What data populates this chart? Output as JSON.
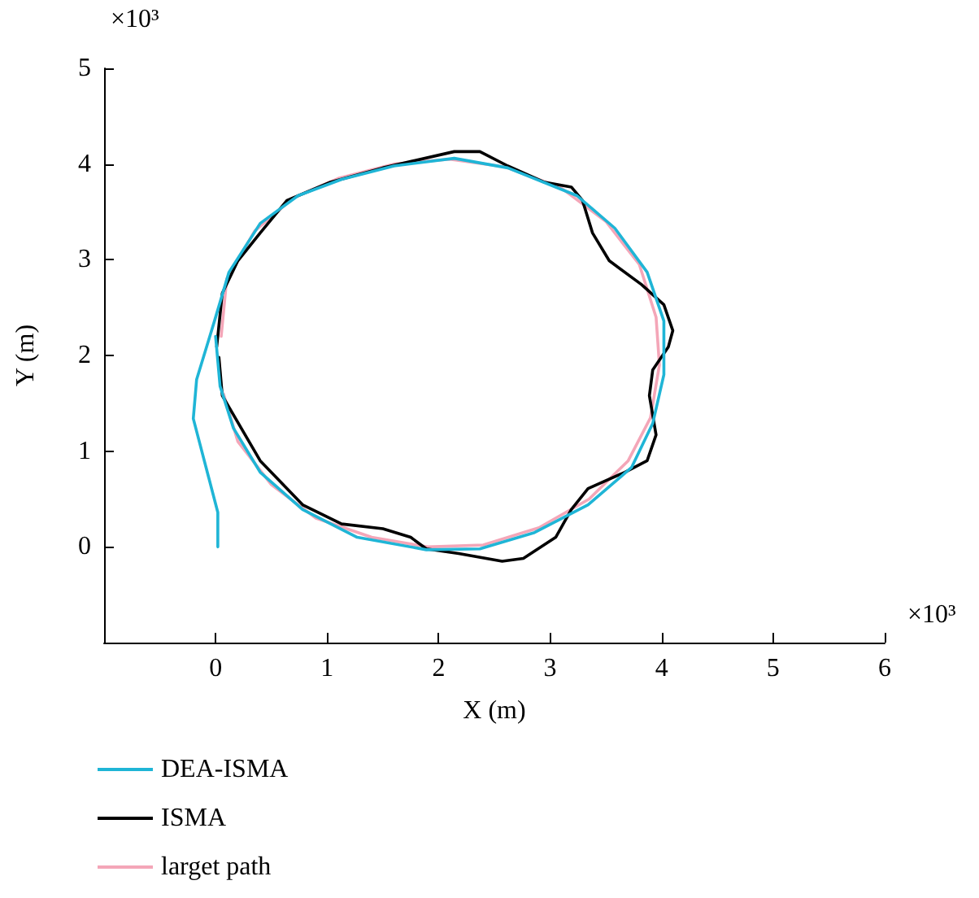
{
  "chart_data": {
    "type": "line",
    "xlabel": "X (m)",
    "ylabel": "Y (m)",
    "annotations": [
      "×10³",
      "×10³"
    ],
    "xlim": [
      -1,
      6
    ],
    "ylim": [
      -1,
      5
    ],
    "xticks": [
      0,
      1,
      2,
      3,
      4,
      5,
      6
    ],
    "yticks": [
      0,
      1,
      2,
      3,
      4,
      5
    ],
    "grid": false,
    "legend": "bottom",
    "marker": "none",
    "series": [
      {
        "name": "DEA-ISMA",
        "color": "#1fb5d6",
        "line_style": "solid",
        "x": [
          0.02,
          0.02,
          -0.2,
          -0.17,
          -0.01,
          0.12,
          0.4,
          0.74,
          1.13,
          1.6,
          2.14,
          2.62,
          3.24,
          3.58,
          3.87,
          4.02,
          4.02,
          3.92,
          3.73,
          3.34,
          2.86,
          2.37,
          1.89,
          1.27,
          0.78,
          0.4,
          0.16,
          0.04,
          0.0
        ],
        "values": [
          0,
          0.36,
          1.34,
          1.75,
          2.36,
          2.87,
          3.38,
          3.67,
          3.84,
          3.98,
          4.06,
          3.96,
          3.67,
          3.33,
          2.87,
          2.36,
          1.8,
          1.29,
          0.83,
          0.44,
          0.15,
          -0.02,
          -0.03,
          0.1,
          0.39,
          0.78,
          1.24,
          1.68,
          2.2
        ]
      },
      {
        "name": "ISMA",
        "color": "#000000",
        "x": [
          0.01,
          0.06,
          0.2,
          0.4,
          0.64,
          1.03,
          1.5,
          2.14,
          2.37,
          2.62,
          2.95,
          3.19,
          3.29,
          3.38,
          3.53,
          3.82,
          4.02,
          4.1,
          4.06,
          3.92,
          3.89,
          3.95,
          3.87,
          3.67,
          3.34,
          3.19,
          3.05,
          2.76,
          2.57,
          2.18,
          1.89,
          1.75,
          1.5,
          1.13,
          0.78,
          0.4,
          0.06,
          0.03
        ],
        "values": [
          2.09,
          2.65,
          2.99,
          3.28,
          3.62,
          3.81,
          3.96,
          4.13,
          4.13,
          3.98,
          3.81,
          3.76,
          3.62,
          3.28,
          2.99,
          2.74,
          2.53,
          2.26,
          2.09,
          1.85,
          1.58,
          1.17,
          0.9,
          0.78,
          0.61,
          0.39,
          0.1,
          -0.12,
          -0.15,
          -0.07,
          -0.02,
          0.1,
          0.19,
          0.24,
          0.44,
          0.9,
          1.58,
          1.98
        ]
      },
      {
        "name": "larget path",
        "color": "#f4a6b8",
        "x": [
          0.05,
          0.1,
          0.35,
          0.7,
          1.1,
          1.6,
          2.1,
          2.6,
          3.1,
          3.5,
          3.8,
          3.95,
          3.98,
          3.9,
          3.7,
          3.35,
          2.9,
          2.4,
          1.9,
          1.4,
          0.9,
          0.5,
          0.2,
          0.07
        ],
        "values": [
          2.2,
          2.8,
          3.3,
          3.65,
          3.85,
          4.0,
          4.05,
          3.97,
          3.75,
          3.4,
          2.95,
          2.4,
          1.9,
          1.35,
          0.9,
          0.5,
          0.2,
          0.02,
          0,
          0.1,
          0.3,
          0.65,
          1.1,
          1.6
        ]
      }
    ]
  }
}
